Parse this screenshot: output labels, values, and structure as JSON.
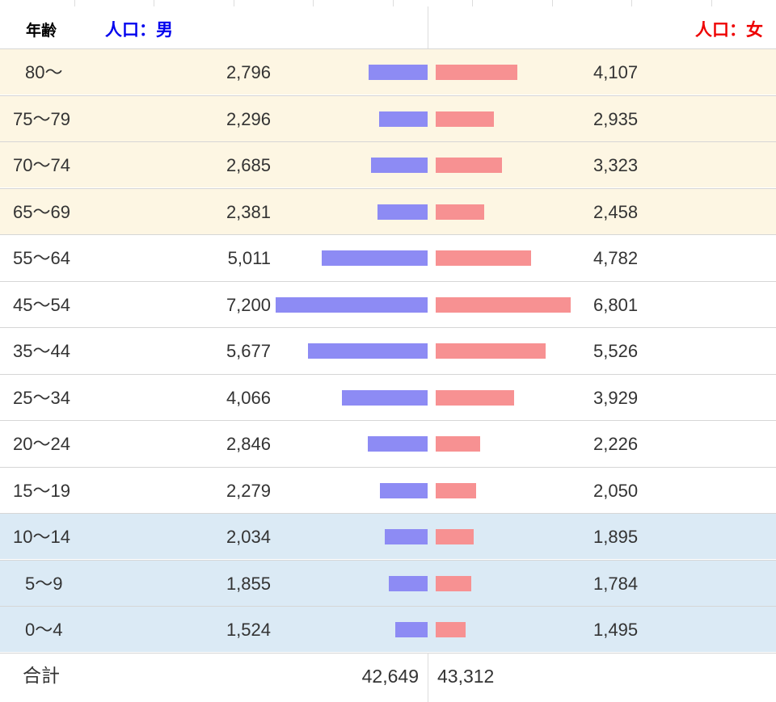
{
  "header": {
    "age_label": "年齢",
    "male_label": "人口：男",
    "female_label": "人口：女"
  },
  "colors": {
    "male_text": "#0000ee",
    "female_text": "#ee0000",
    "male_bar": "#8d8bf4",
    "female_bar": "#f79192",
    "band_old": "#fdf6e3",
    "band_young": "#dbeaf5"
  },
  "chart_data": {
    "type": "bar",
    "categories": [
      "80〜",
      "75〜79",
      "70〜74",
      "65〜69",
      "55〜64",
      "45〜54",
      "35〜44",
      "25〜34",
      "20〜24",
      "15〜19",
      "10〜14",
      "5〜9",
      "0〜4"
    ],
    "categories_display": [
      "80〜",
      "75〜79",
      "70〜74",
      "65〜69",
      "55〜64",
      "45〜54",
      "35〜44",
      "25〜34",
      "20〜24",
      "15〜19",
      "10〜14",
      "5〜9",
      "0〜4"
    ],
    "series": [
      {
        "name": "人口：男",
        "values": [
          2796,
          2296,
          2685,
          2381,
          5011,
          7200,
          5677,
          4066,
          2846,
          2279,
          2034,
          1855,
          1524
        ],
        "labels": [
          "2,796",
          "2,296",
          "2,685",
          "2,381",
          "5,011",
          "7,200",
          "5,677",
          "4,066",
          "2,846",
          "2,279",
          "2,034",
          "1,855",
          "1,524"
        ]
      },
      {
        "name": "人口：女",
        "values": [
          4107,
          2935,
          3323,
          2458,
          4782,
          6801,
          5526,
          3929,
          2226,
          2050,
          1895,
          1784,
          1495
        ],
        "labels": [
          "4,107",
          "2,935",
          "3,323",
          "2,458",
          "4,782",
          "6,801",
          "5,526",
          "3,929",
          "2,226",
          "2,050",
          "1,895",
          "1,784",
          "1,495"
        ]
      }
    ],
    "bands": [
      "old",
      "old",
      "old",
      "old",
      "mid",
      "mid",
      "mid",
      "mid",
      "mid",
      "mid",
      "young",
      "young",
      "young"
    ],
    "xlim": [
      0,
      7200
    ],
    "grid": false,
    "legend": "header"
  },
  "totals": {
    "label": "合計",
    "male": "42,649",
    "female": "43,312"
  }
}
